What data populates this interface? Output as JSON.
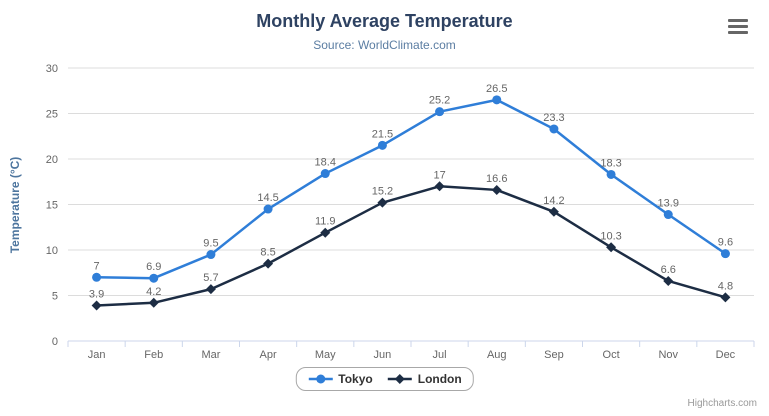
{
  "chart_data": {
    "type": "line",
    "title": "Monthly Average Temperature",
    "subtitle": "Source: WorldClimate.com",
    "ylabel": "Temperature (°C)",
    "xlabel": "",
    "ylim": [
      0,
      30
    ],
    "ytick_step": 5,
    "grid": true,
    "data_labels": true,
    "legend_position": "bottom",
    "categories": [
      "Jan",
      "Feb",
      "Mar",
      "Apr",
      "May",
      "Jun",
      "Jul",
      "Aug",
      "Sep",
      "Oct",
      "Nov",
      "Dec"
    ],
    "series": [
      {
        "name": "Tokyo",
        "color": "#2f7ed8",
        "marker": "circle",
        "values": [
          7,
          6.9,
          9.5,
          14.5,
          18.4,
          21.5,
          25.2,
          26.5,
          23.3,
          18.3,
          13.9,
          9.6
        ]
      },
      {
        "name": "London",
        "color": "#1d2d44",
        "marker": "diamond",
        "values": [
          3.9,
          4.2,
          5.7,
          8.5,
          11.9,
          15.2,
          17,
          16.6,
          14.2,
          10.3,
          6.6,
          4.8
        ]
      }
    ]
  },
  "colors": {
    "title": "#2e4262",
    "subtitle": "#5b7da2",
    "axis_title": "#4d759e",
    "tick_label": "#666666",
    "data_label": "#666666",
    "gridline": "#dcdcdc",
    "axis_line": "#ccd6eb",
    "legend_border": "#a8a8a8",
    "legend_text": "#333333",
    "credits": "#999999",
    "menu_icon": "#666666"
  },
  "credits": {
    "text": "Highcharts.com"
  }
}
